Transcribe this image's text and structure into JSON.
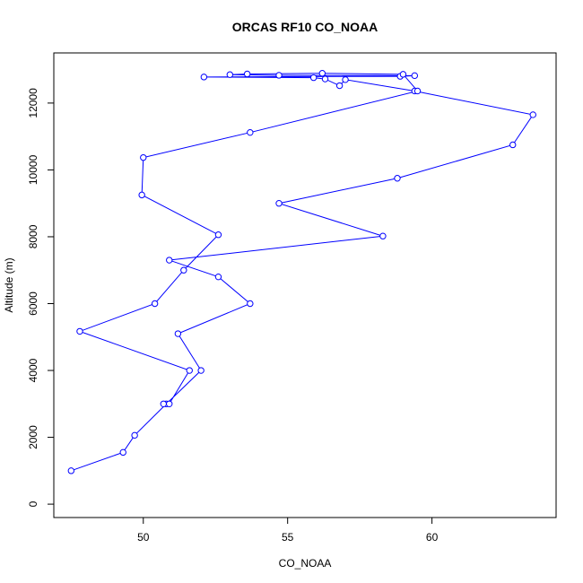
{
  "chart_data": {
    "type": "line",
    "title": "ORCAS RF10 CO_NOAA",
    "xlabel": "CO_NOAA",
    "ylabel": "Altitude (m)",
    "xlim": [
      46.9,
      64.3
    ],
    "ylim": [
      -400,
      13500
    ],
    "xticks": [
      50,
      55,
      60
    ],
    "xtick_labels": [
      "50",
      "55",
      "60"
    ],
    "yticks": [
      0,
      2000,
      4000,
      6000,
      8000,
      10000,
      12000
    ],
    "ytick_labels": [
      "0",
      "2000",
      "4000",
      "6000",
      "8000",
      "10000",
      "12000"
    ],
    "grid": false,
    "legend": "none",
    "series_color": "#0000ff",
    "series": [
      {
        "marker": "open-circle",
        "points": [
          {
            "x": 47.5,
            "y": 1000
          },
          {
            "x": 49.3,
            "y": 1550
          },
          {
            "x": 49.7,
            "y": 2060
          },
          {
            "x": 50.8,
            "y": 3000
          },
          {
            "x": 52.0,
            "y": 4000
          },
          {
            "x": 51.2,
            "y": 5100
          },
          {
            "x": 53.7,
            "y": 6000
          },
          {
            "x": 52.6,
            "y": 6800
          },
          {
            "x": 50.9,
            "y": 7300
          },
          {
            "x": 58.3,
            "y": 8020
          },
          {
            "x": 54.7,
            "y": 9000
          },
          {
            "x": 58.8,
            "y": 9750
          },
          {
            "x": 62.8,
            "y": 10750
          },
          {
            "x": 63.5,
            "y": 11650
          },
          {
            "x": 59.4,
            "y": 12360
          },
          {
            "x": 57.0,
            "y": 12700
          },
          {
            "x": 56.8,
            "y": 12520
          },
          {
            "x": 56.3,
            "y": 12720
          },
          {
            "x": 55.9,
            "y": 12760
          },
          {
            "x": 52.1,
            "y": 12780
          },
          {
            "x": 58.9,
            "y": 12800
          },
          {
            "x": 59.4,
            "y": 12820
          },
          {
            "x": 54.7,
            "y": 12830
          },
          {
            "x": 53.0,
            "y": 12850
          },
          {
            "x": 53.6,
            "y": 12870
          },
          {
            "x": 56.2,
            "y": 12890
          },
          {
            "x": 59.0,
            "y": 12860
          },
          {
            "x": 59.5,
            "y": 12360
          },
          {
            "x": 53.7,
            "y": 11120
          },
          {
            "x": 50.0,
            "y": 10370
          },
          {
            "x": 49.95,
            "y": 9250
          },
          {
            "x": 52.6,
            "y": 8060
          },
          {
            "x": 51.4,
            "y": 7000
          },
          {
            "x": 50.4,
            "y": 6000
          },
          {
            "x": 47.8,
            "y": 5170
          },
          {
            "x": 51.6,
            "y": 4000
          },
          {
            "x": 50.9,
            "y": 3000
          },
          {
            "x": 50.7,
            "y": 3000
          }
        ]
      }
    ]
  }
}
